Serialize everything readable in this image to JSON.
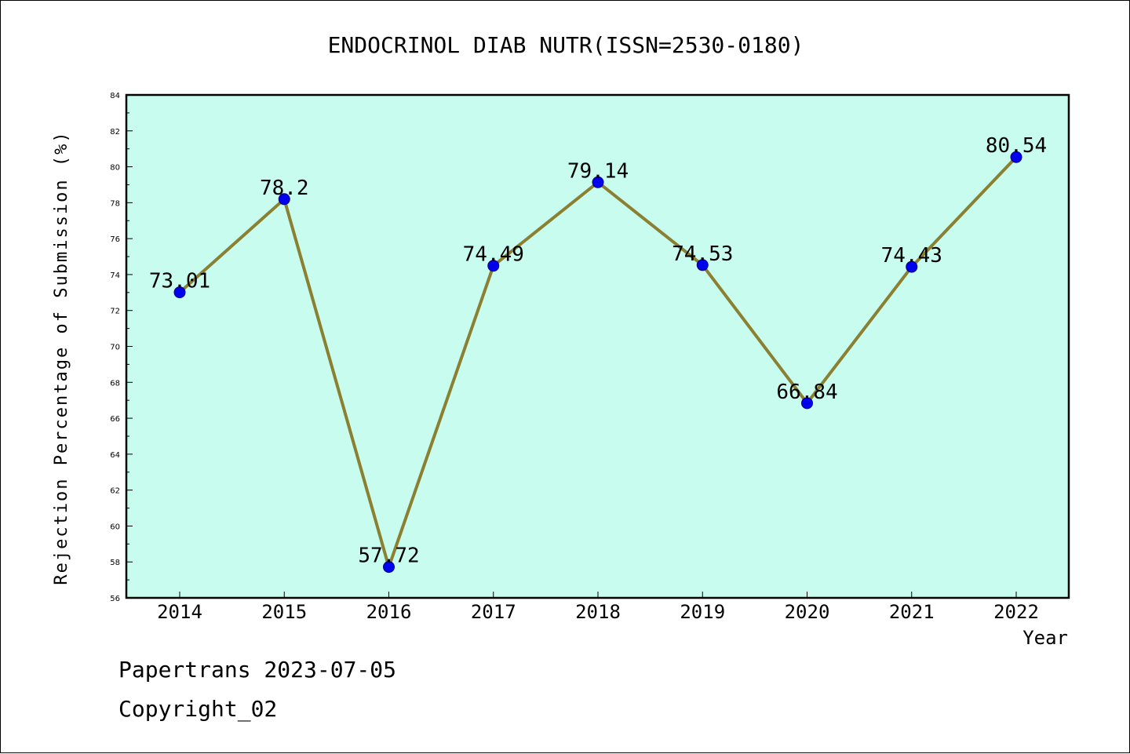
{
  "chart_data": {
    "type": "line",
    "title": "ENDOCRINOL DIAB NUTR(ISSN=2530-0180)",
    "xlabel": "Year",
    "ylabel": "Rejection Percentage of Submission (%)",
    "categories": [
      "2014",
      "2015",
      "2016",
      "2017",
      "2018",
      "2019",
      "2020",
      "2021",
      "2022"
    ],
    "values": [
      73.01,
      78.2,
      57.72,
      74.49,
      79.14,
      74.53,
      66.84,
      74.43,
      80.54
    ],
    "data_labels": [
      "73.01",
      "78.2",
      "57.72",
      "74.49",
      "79.14",
      "74.53",
      "66.84",
      "74.43",
      "80.54"
    ],
    "ylim": [
      56,
      84
    ],
    "yticks": [
      "56",
      "58",
      "60",
      "62",
      "64",
      "66",
      "68",
      "70",
      "72",
      "74",
      "76",
      "78",
      "80",
      "82",
      "84"
    ],
    "grid": false,
    "legend": false,
    "colors": {
      "plot_background": "#c7fcee",
      "line": "#8b8032",
      "marker": "#0000ee"
    }
  },
  "footer": {
    "line1": "Papertrans 2023-07-05",
    "line2": "Copyright_02"
  }
}
